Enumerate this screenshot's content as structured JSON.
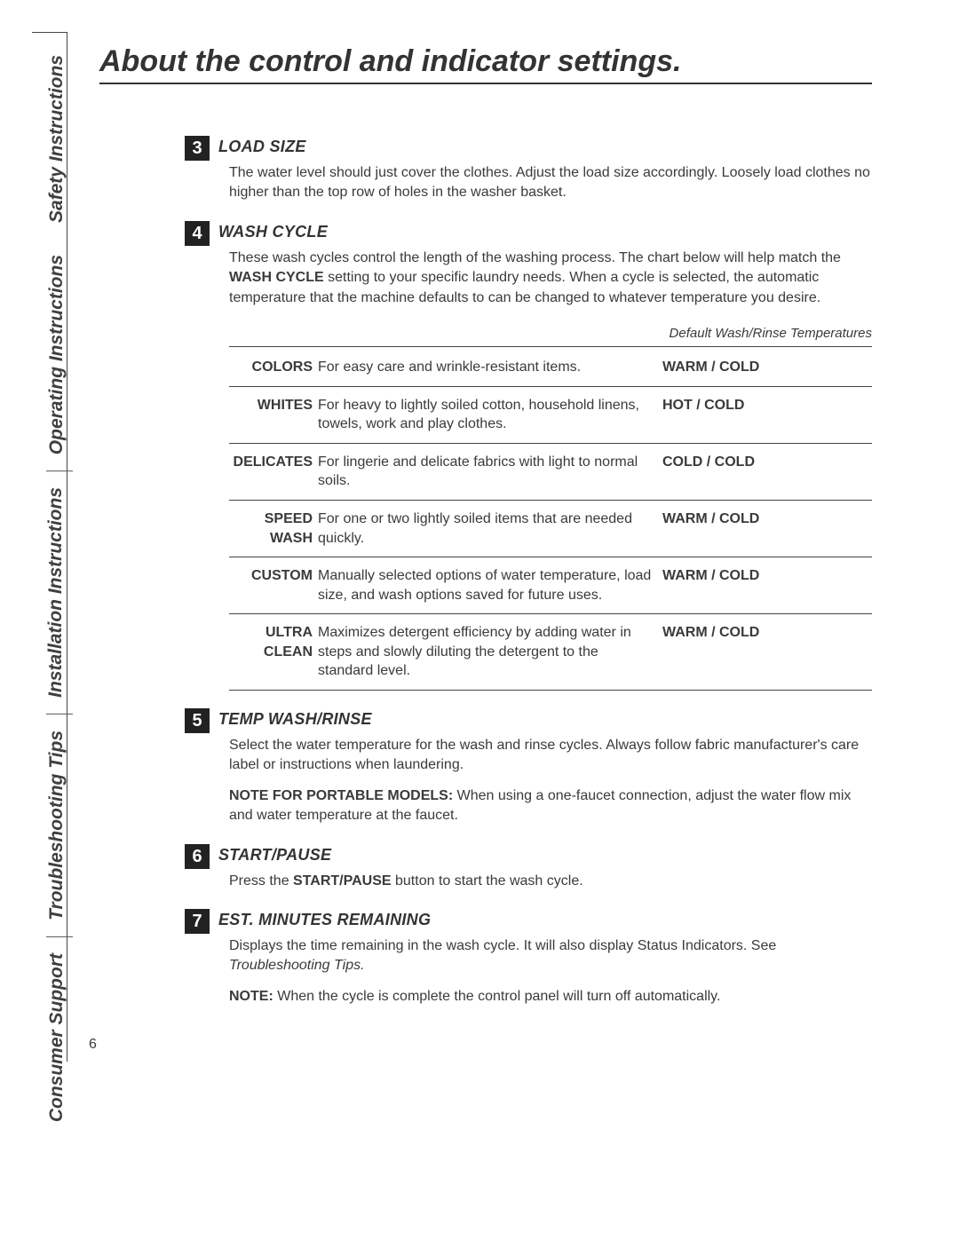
{
  "page_number": "6",
  "title": "About the control and indicator settings.",
  "sidebar_tabs": [
    "Safety Instructions",
    "Operating Instructions",
    "Installation\nInstructions",
    "Troubleshooting Tips",
    "Consumer Support"
  ],
  "sections": [
    {
      "num": "3",
      "heading": "LOAD SIZE",
      "paras": [
        {
          "type": "plain",
          "text": "The water level should just cover the clothes. Adjust the load size accordingly. Loosely load clothes no higher than the top row of holes in the washer basket."
        }
      ]
    },
    {
      "num": "4",
      "heading": "WASH CYCLE",
      "paras": [
        {
          "type": "inline_bold",
          "before": "These wash cycles control the length of the washing process. The chart below will help match the ",
          "bold": "WASH CYCLE",
          "after": " setting to your specific laundry needs. When a cycle is selected, the automatic temperature that the machine defaults to can be changed to whatever temperature you desire."
        }
      ],
      "table": {
        "caption": "Default Wash/Rinse Temperatures",
        "rows": [
          {
            "name": "COLORS",
            "desc": "For easy care and wrinkle-resistant items.",
            "temp": "WARM / COLD"
          },
          {
            "name": "WHITES",
            "desc": "For heavy to lightly soiled cotton, household linens, towels, work and play clothes.",
            "temp": "HOT / COLD"
          },
          {
            "name": "DELICATES",
            "desc": "For lingerie and delicate fabrics with light to normal soils.",
            "temp": "COLD / COLD"
          },
          {
            "name": "SPEED\nWASH",
            "desc": "For one or two lightly soiled items that are needed quickly.",
            "temp": "WARM / COLD"
          },
          {
            "name": "CUSTOM",
            "desc": "Manually selected options of water temperature, load size, and wash options saved for future uses.",
            "temp": "WARM / COLD"
          },
          {
            "name": "ULTRA\nCLEAN",
            "desc": "Maximizes detergent efficiency by adding water in steps and slowly diluting the detergent to the standard level.",
            "temp": "WARM / COLD"
          }
        ]
      }
    },
    {
      "num": "5",
      "heading": "TEMP WASH/RINSE",
      "paras": [
        {
          "type": "plain",
          "text": "Select the water temperature for the wash and rinse cycles. Always follow fabric manufacturer's care label or instructions when laundering."
        },
        {
          "type": "lead_bold",
          "bold": "NOTE FOR PORTABLE MODELS:",
          "after": " When using a one-faucet connection, adjust the water flow mix and water temperature at the faucet."
        }
      ]
    },
    {
      "num": "6",
      "heading": "START/PAUSE",
      "paras": [
        {
          "type": "mid_bold",
          "before": "Press the ",
          "bold": "START/PAUSE",
          "after": " button to start the wash cycle."
        }
      ]
    },
    {
      "num": "7",
      "heading": "EST. MINUTES REMAINING",
      "paras": [
        {
          "type": "tail_ital",
          "before": "Displays the time remaining in the wash cycle. It will also display Status Indicators. See ",
          "ital": "Troubleshooting Tips."
        },
        {
          "type": "lead_bold",
          "bold": "NOTE:",
          "after": " When the cycle is complete the control panel will turn off automatically."
        }
      ]
    }
  ]
}
